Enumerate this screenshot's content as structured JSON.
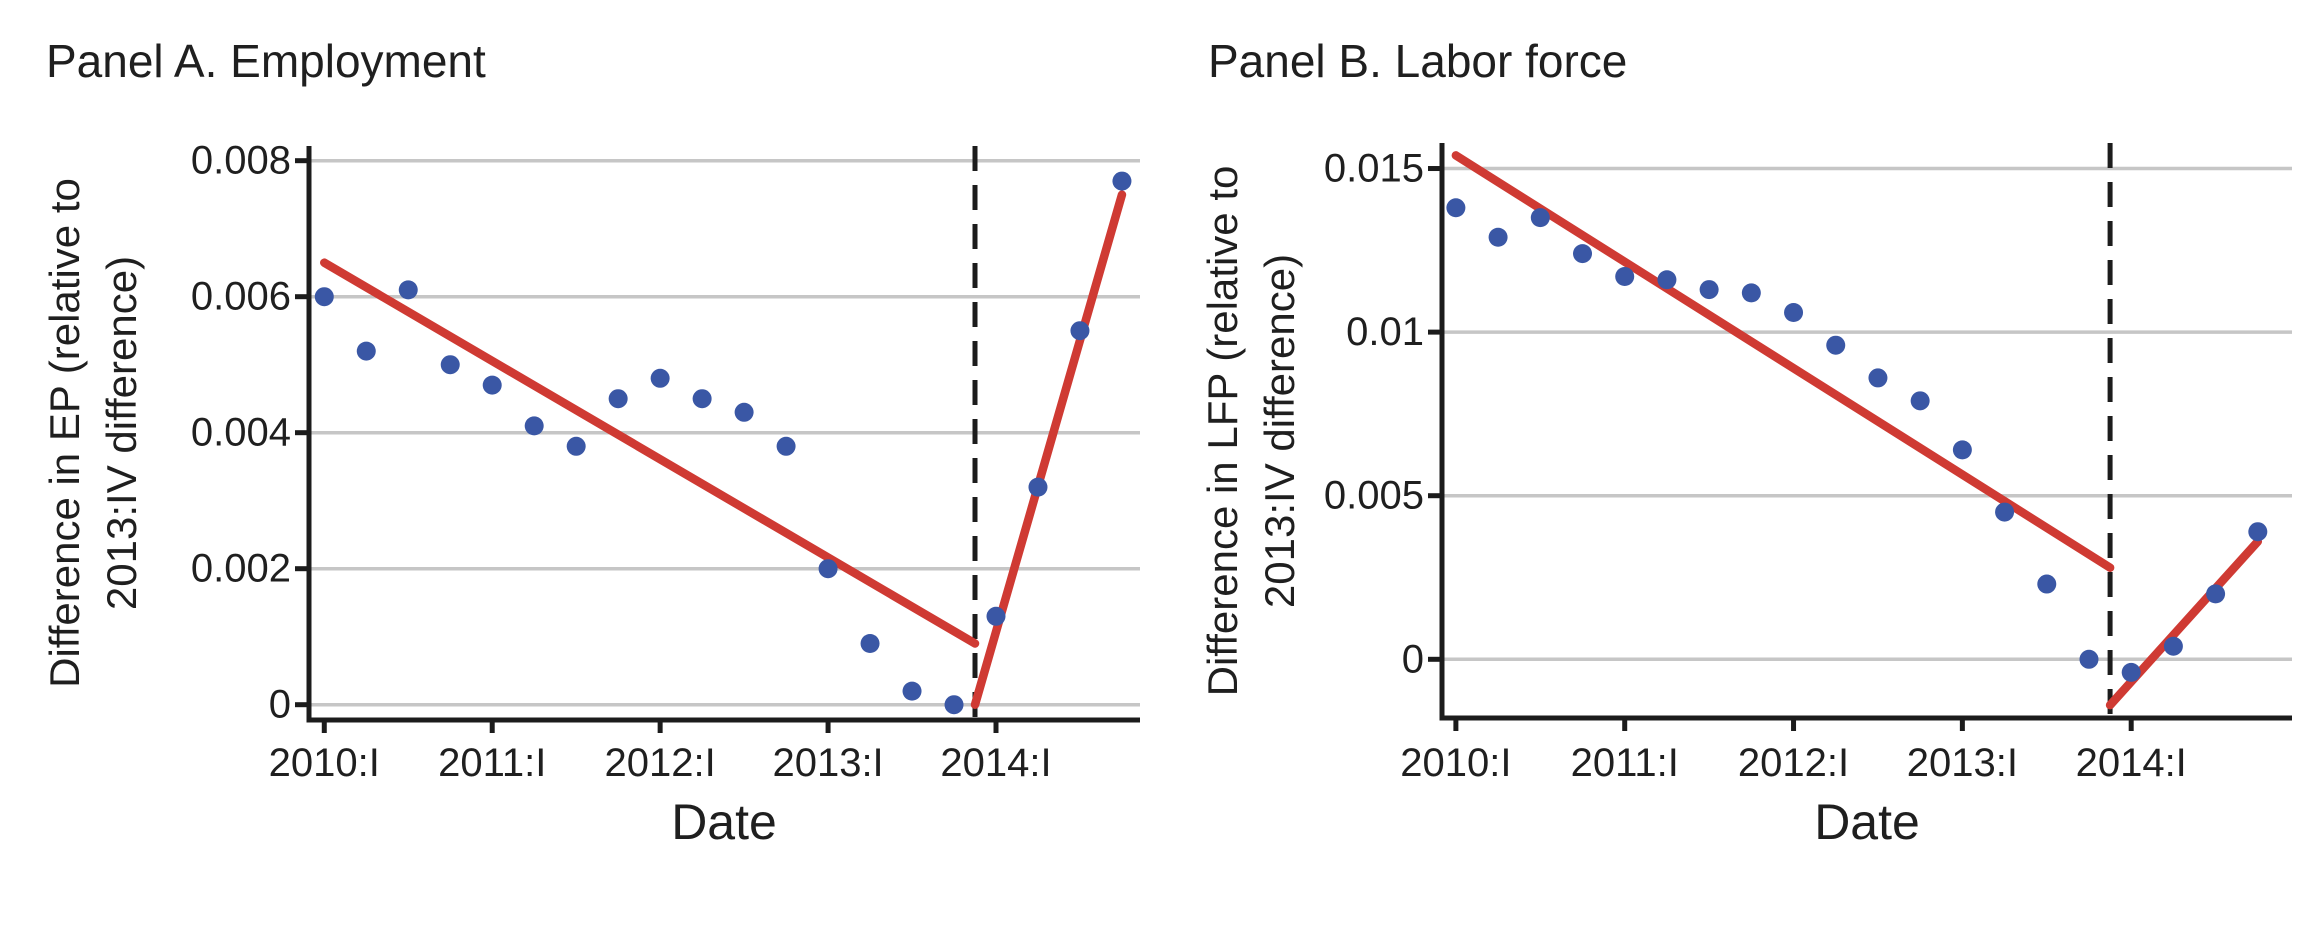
{
  "colors": {
    "background": "#ffffff",
    "dot_blue": "#3a57a5",
    "trend_red": "#cf3a33",
    "grid_gray": "#c6c6c6",
    "axis_black": "#1c1c1c",
    "dashed_black": "#1c1c1c",
    "text_black": "#1f1f1f"
  },
  "chart_data": [
    {
      "type": "scatter",
      "panel": "A",
      "title": "Panel A. Employment",
      "ylabel_line1": "Difference in EP (relative to",
      "ylabel_line2": "2013:IV difference)",
      "xlabel": "Date",
      "grid": "horizontal",
      "legend": "none",
      "xlim": [
        -0.364,
        19.43
      ],
      "ylim": [
        -0.000225,
        0.008216
      ],
      "x_tick_positions": [
        0,
        4,
        8,
        12,
        16
      ],
      "x_tick_labels": [
        "2010:I",
        "2011:I",
        "2012:I",
        "2013:I",
        "2014:I"
      ],
      "y_tick_values": [
        0,
        0.002,
        0.004,
        0.006,
        0.008
      ],
      "y_tick_labels": [
        "0",
        "0.002",
        "0.004",
        "0.006",
        "0.008"
      ],
      "quarters": [
        "2010:I",
        "2010:II",
        "2010:III",
        "2010:IV",
        "2011:I",
        "2011:II",
        "2011:III",
        "2011:IV",
        "2012:I",
        "2012:II",
        "2012:III",
        "2012:IV",
        "2013:I",
        "2013:II",
        "2013:III",
        "2013:IV",
        "2014:I",
        "2014:II",
        "2014:III",
        "2014:IV"
      ],
      "values": [
        0.006,
        0.0052,
        0.0061,
        0.005,
        0.0047,
        0.0041,
        0.0038,
        0.0045,
        0.0048,
        0.0045,
        0.0043,
        0.0038,
        0.002,
        0.0009,
        0.0002,
        0.0,
        0.0013,
        0.0032,
        0.0055,
        0.0077
      ],
      "trend_pre": {
        "x": [
          0,
          15.5
        ],
        "y": [
          0.0065,
          0.0009
        ]
      },
      "trend_post": {
        "x": [
          15.5,
          19
        ],
        "y": [
          0.0,
          0.0075
        ]
      },
      "vline_x": 15.5
    },
    {
      "type": "scatter",
      "panel": "B",
      "title": "Panel B. Labor force",
      "ylabel_line1": "Difference in LFP (relative to",
      "ylabel_line2": "2013:IV difference)",
      "xlabel": "Date",
      "grid": "horizontal",
      "legend": "none",
      "xlim": [
        -0.329,
        19.81
      ],
      "ylim": [
        -0.001794,
        0.01578
      ],
      "x_tick_positions": [
        0,
        4,
        8,
        12,
        16
      ],
      "x_tick_labels": [
        "2010:I",
        "2011:I",
        "2012:I",
        "2013:I",
        "2014:I"
      ],
      "y_tick_values": [
        0,
        0.005,
        0.01,
        0.015
      ],
      "y_tick_labels": [
        "0",
        "0.005",
        "0.01",
        "0.015"
      ],
      "quarters": [
        "2010:I",
        "2010:II",
        "2010:III",
        "2010:IV",
        "2011:I",
        "2011:II",
        "2011:III",
        "2011:IV",
        "2012:I",
        "2012:II",
        "2012:III",
        "2012:IV",
        "2013:I",
        "2013:II",
        "2013:III",
        "2013:IV",
        "2014:I",
        "2014:II",
        "2014:III",
        "2014:IV"
      ],
      "values": [
        0.0138,
        0.0129,
        0.0135,
        0.0124,
        0.0117,
        0.0116,
        0.0113,
        0.0112,
        0.0106,
        0.0096,
        0.0086,
        0.0079,
        0.0064,
        0.0045,
        0.0023,
        0.0,
        -0.0004,
        0.0004,
        0.002,
        0.0039
      ],
      "trend_pre": {
        "x": [
          0,
          15.5
        ],
        "y": [
          0.0154,
          0.0028
        ]
      },
      "trend_post": {
        "x": [
          15.5,
          19
        ],
        "y": [
          -0.0014,
          0.0036
        ]
      },
      "vline_x": 15.5
    }
  ]
}
